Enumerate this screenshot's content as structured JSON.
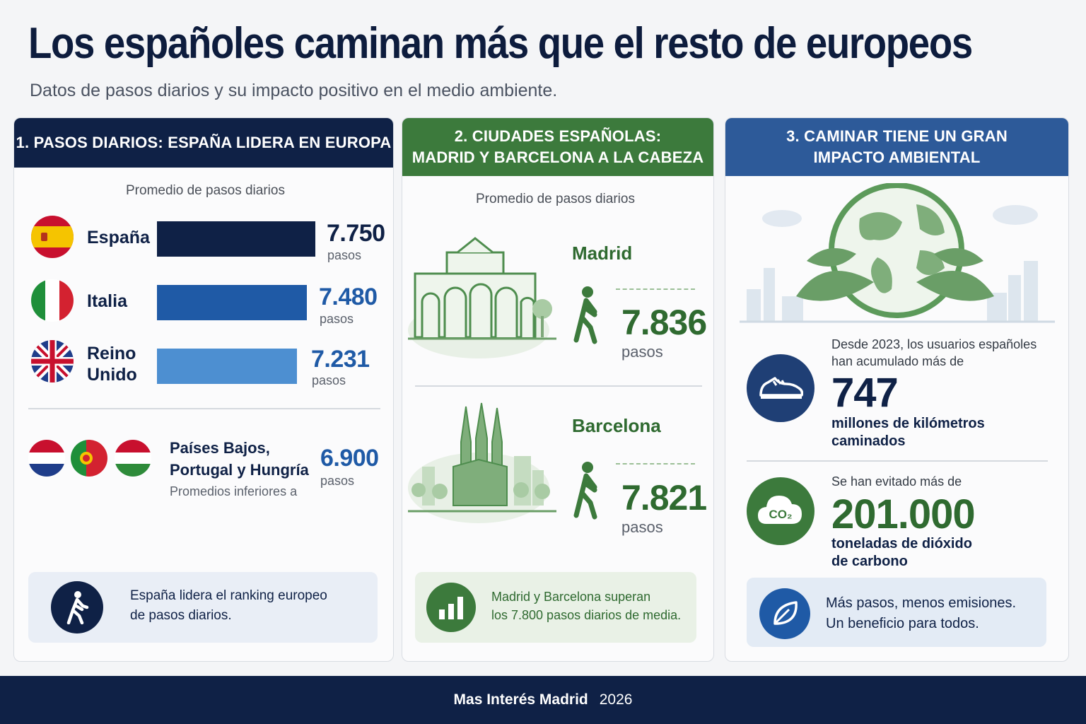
{
  "title": "Los españoles caminan más que el resto de europeos",
  "subtitle": "Datos de pasos diarios y su impacto positivo en el medio ambiente.",
  "colors": {
    "navy": "#0f2146",
    "blue": "#1f5aa6",
    "light_blue": "#4d8fd1",
    "green": "#3c7a3c",
    "panel3_blue": "#2d5a99"
  },
  "panel1": {
    "header": "1. PASOS DIARIOS: ESPAÑA LIDERA EN EUROPA",
    "caption": "Promedio de pasos diarios",
    "countries": [
      {
        "name": "España",
        "value": "7.750",
        "steps": 7750,
        "unit": "pasos",
        "flag": "spain-flag-icon"
      },
      {
        "name": "Italia",
        "value": "7.480",
        "steps": 7480,
        "unit": "pasos",
        "flag": "italy-flag-icon"
      },
      {
        "name_line1": "Reino",
        "name_line2": "Unido",
        "value": "7.231",
        "steps": 7231,
        "unit": "pasos",
        "flag": "uk-flag-icon"
      }
    ],
    "others": {
      "line1": "Países Bajos,",
      "line2": "Portugal y Hungría",
      "sub": "Promedios inferiores a",
      "value": "6.900",
      "unit": "pasos"
    },
    "callout": {
      "line1": "España lidera el ranking europeo",
      "line2": "de pasos diarios.",
      "icon": "walking-person-icon"
    }
  },
  "panel2": {
    "header_line1": "2. CIUDADES ESPAÑOLAS:",
    "header_line2": "MADRID Y BARCELONA A LA CABEZA",
    "caption": "Promedio de pasos diarios",
    "cities": [
      {
        "name": "Madrid",
        "value": "7.836",
        "unit": "pasos",
        "icon": "walking-person-icon"
      },
      {
        "name": "Barcelona",
        "value": "7.821",
        "unit": "pasos",
        "icon": "walking-person-icon"
      }
    ],
    "callout": {
      "line1": "Madrid y Barcelona superan",
      "line2": "los 7.800 pasos diarios de media.",
      "icon": "bar-chart-icon"
    }
  },
  "panel3": {
    "header_line1": "3. CAMINAR TIENE UN GRAN",
    "header_line2": "IMPACTO AMBIENTAL",
    "stat1": {
      "lead_line1": "Desde 2023, los usuarios españoles",
      "lead_line2": "han acumulado más de",
      "value": "747",
      "desc_line1": "millones de kilómetros",
      "desc_line2": "caminados",
      "icon": "sneaker-icon"
    },
    "stat2": {
      "lead": "Se han evitado más de",
      "value": "201.000",
      "desc_line1": "toneladas de dióxido",
      "desc_line2": "de carbono",
      "icon_text": "CO₂",
      "icon": "co2-cloud-icon"
    },
    "callout": {
      "line1": "Más pasos, menos emisiones.",
      "line2": "Un beneficio para todos.",
      "icon": "leaf-icon"
    }
  },
  "footer": {
    "brand": "Mas Interés Madrid",
    "year": "2026"
  }
}
